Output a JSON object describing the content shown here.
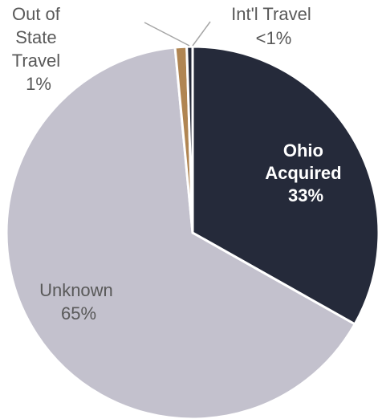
{
  "chart_data": {
    "type": "pie",
    "slices": [
      {
        "name": "Ohio Acquired",
        "value": 33,
        "value_label": "33%",
        "color": "#252a3a"
      },
      {
        "name": "Unknown",
        "value": 65,
        "value_label": "65%",
        "color": "#c3c1cd"
      },
      {
        "name": "Out of State Travel",
        "value": 1,
        "value_label": "1%",
        "color": "#b08552"
      },
      {
        "name": "Int'l Travel",
        "value": 0.5,
        "value_label": "<1%",
        "color": "#252a3a"
      }
    ]
  },
  "labels": {
    "ohio_line1": "Ohio",
    "ohio_line2": "Acquired",
    "ohio_pct": "33%",
    "unknown_line1": "Unknown",
    "unknown_pct": "65%",
    "oos_line1": "Out of",
    "oos_line2": "State",
    "oos_line3": "Travel",
    "oos_pct": "1%",
    "intl_line1": "Int'l Travel",
    "intl_pct": "<1%"
  }
}
